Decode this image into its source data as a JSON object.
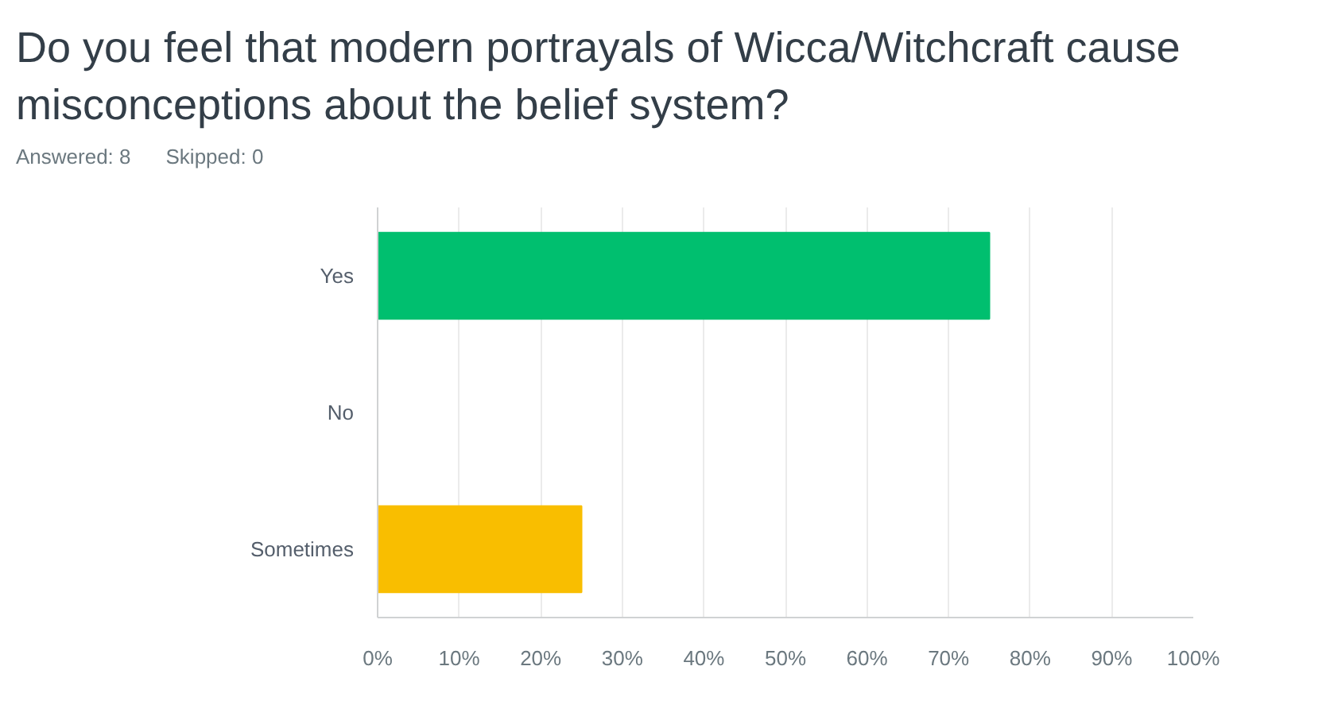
{
  "chart_data": {
    "type": "bar",
    "orientation": "horizontal",
    "title": "Do you feel that modern portrayals of Wicca/Witchcraft cause misconceptions about the belief system?",
    "subtitle": "Answered: 8",
    "annotations": [
      "Skipped: 0"
    ],
    "categories": [
      "Yes",
      "No",
      "Sometimes"
    ],
    "values": [
      75,
      0,
      25
    ],
    "colors": [
      "#00bf6f",
      null,
      "#f9be00"
    ],
    "xlim": [
      0,
      100
    ],
    "xticks": [
      {
        "value": 0,
        "label": "0%"
      },
      {
        "value": 10,
        "label": "10%"
      },
      {
        "value": 20,
        "label": "20%"
      },
      {
        "value": 30,
        "label": "30%"
      },
      {
        "value": 40,
        "label": "40%"
      },
      {
        "value": 50,
        "label": "50%"
      },
      {
        "value": 60,
        "label": "60%"
      },
      {
        "value": 70,
        "label": "70%"
      },
      {
        "value": 80,
        "label": "80%"
      },
      {
        "value": 90,
        "label": "90%"
      },
      {
        "value": 100,
        "label": "100%"
      }
    ],
    "grid": "x"
  }
}
